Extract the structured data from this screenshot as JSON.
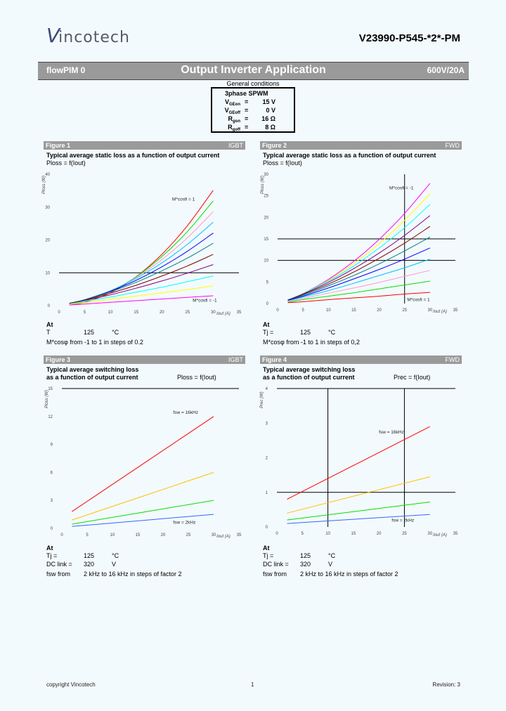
{
  "header": {
    "logo_text": "incotech",
    "logo_letter": "V",
    "part_number": "V23990-P545-*2*-PM"
  },
  "band": {
    "left": "flowPIM 0",
    "title": "Output Inverter Application",
    "right": "600V/20A"
  },
  "general_conditions": {
    "title": "General conditions",
    "mode": "3phase SPWM",
    "rows": [
      {
        "name": "V",
        "sub": "GEon",
        "eq": "=",
        "value": "15 V"
      },
      {
        "name": "V",
        "sub": "GEoff",
        "eq": "=",
        "value": "0 V"
      },
      {
        "name": "R",
        "sub": "gon",
        "eq": "=",
        "value": "16 Ω"
      },
      {
        "name": "R",
        "sub": "goff",
        "eq": "=",
        "value": "8 Ω"
      }
    ]
  },
  "figures": [
    {
      "label": "Figure 1",
      "tag": "IGBT",
      "title": "Typical average static loss as a function of output current",
      "title2": "",
      "formula": "Ploss = f(Iout)",
      "at": "At",
      "conditions": [
        {
          "k": "T",
          "v": "125",
          "u": "°C"
        }
      ],
      "note": "M*cosφ from -1 to 1 in steps of 0.2"
    },
    {
      "label": "Figure 2",
      "tag": "FWD",
      "title": "Typical average static loss as a function of output current",
      "title2": "",
      "formula": "Ploss = f(Iout)",
      "at": "At",
      "conditions": [
        {
          "k": "Tj =",
          "v": "125",
          "u": "°C"
        }
      ],
      "note": "M*cosφ from -1 to 1 in steps of 0,2"
    },
    {
      "label": "Figure 3",
      "tag": "IGBT",
      "title": "Typical average switching loss",
      "title2": "as a function of output current",
      "formula": "Ploss = f(Iout)",
      "at": "At",
      "conditions": [
        {
          "k": "Tj =",
          "v": "125",
          "u": "°C"
        },
        {
          "k": "DC link =",
          "v": "320",
          "u": "V"
        }
      ],
      "note_k": "fsw from",
      "note": "2 kHz to 16 kHz in steps of factor 2"
    },
    {
      "label": "Figure 4",
      "tag": "FWD",
      "title": "Typical average switching loss",
      "title2": "as a function of output current",
      "formula": "Prec = f(Iout)",
      "at": "At",
      "conditions": [
        {
          "k": "Tj =",
          "v": "125",
          "u": "°C"
        },
        {
          "k": "DC link =",
          "v": "320",
          "u": "V"
        }
      ],
      "note_k": "fsw from",
      "note": "2 kHz to 16 kHz in steps of factor 2"
    }
  ],
  "chart_data": [
    {
      "type": "line",
      "ylabel": "Ploss (W)",
      "xlabel": "Iout (A)",
      "xlim": [
        0,
        35
      ],
      "ylim": [
        0,
        40
      ],
      "xticks": [
        "0",
        "5",
        "10",
        "15",
        "20",
        "25",
        "30",
        "35"
      ],
      "yticks": [
        "0",
        "10",
        "20",
        "30",
        "40"
      ],
      "ref_h": [
        10
      ],
      "ref_v": [],
      "annotations": [
        {
          "text": "M*cosfi = 1",
          "x": 22,
          "y": 32
        },
        {
          "text": "M*cosfi = -1",
          "x": 26,
          "y": 1.2
        }
      ],
      "x": [
        2,
        5,
        10,
        15,
        20,
        25,
        30
      ],
      "series": [
        {
          "color": "#ff0000",
          "values": [
            0.2,
            1.0,
            3.9,
            8.8,
            15.6,
            24.4,
            35.1
          ]
        },
        {
          "color": "#00e000",
          "values": [
            0.3,
            1.3,
            4.3,
            8.8,
            14.9,
            22.6,
            31.9
          ]
        },
        {
          "color": "#ff99cc",
          "values": [
            0.5,
            1.6,
            4.4,
            8.6,
            14.0,
            20.7,
            28.6
          ]
        },
        {
          "color": "#00bfff",
          "values": [
            0.6,
            1.8,
            4.5,
            8.3,
            13.0,
            18.7,
            25.4
          ]
        },
        {
          "color": "#0000ff",
          "values": [
            0.6,
            1.8,
            4.4,
            7.7,
            11.8,
            16.6,
            22.1
          ]
        },
        {
          "color": "#008080",
          "values": [
            0.7,
            1.8,
            4.2,
            7.1,
            10.6,
            14.5,
            19.0
          ]
        },
        {
          "color": "#800000",
          "values": [
            0.7,
            1.7,
            3.8,
            6.2,
            9.0,
            12.1,
            15.6
          ]
        },
        {
          "color": "#800080",
          "values": [
            0.6,
            1.6,
            3.3,
            5.3,
            7.5,
            9.9,
            12.5
          ]
        },
        {
          "color": "#00ffff",
          "values": [
            0.5,
            1.3,
            2.6,
            4.1,
            5.6,
            7.3,
            9.0
          ]
        },
        {
          "color": "#ffff00",
          "values": [
            0.4,
            0.9,
            1.9,
            2.9,
            3.9,
            4.9,
            6.0
          ]
        },
        {
          "color": "#ff00ff",
          "values": [
            0.2,
            0.5,
            1.0,
            1.5,
            2.0,
            2.5,
            3.0
          ]
        }
      ]
    },
    {
      "type": "line",
      "ylabel": "Ploss (W)",
      "xlabel": "Iout (A)",
      "xlim": [
        0,
        35
      ],
      "ylim": [
        0,
        30
      ],
      "xticks": [
        "0",
        "5",
        "10",
        "15",
        "20",
        "25",
        "30",
        "35"
      ],
      "yticks": [
        "0",
        "5",
        "10",
        "15",
        "20",
        "25",
        "30"
      ],
      "ref_h": [
        10,
        15
      ],
      "ref_v": [
        25
      ],
      "annotations": [
        {
          "text": "M*cosfi = -1",
          "x": 22,
          "y": 26.5
        },
        {
          "text": "M*cosfi = 1",
          "x": 25.5,
          "y": 0.6
        }
      ],
      "x": [
        2,
        5,
        10,
        15,
        20,
        25,
        30
      ],
      "series": [
        {
          "color": "#ff00ff",
          "values": [
            0.8,
            2.3,
            5.6,
            9.8,
            14.9,
            20.9,
            27.9
          ]
        },
        {
          "color": "#ffff00",
          "values": [
            0.8,
            2.3,
            5.4,
            9.3,
            13.9,
            19.3,
            25.5
          ]
        },
        {
          "color": "#00ffff",
          "values": [
            0.8,
            2.3,
            5.2,
            8.7,
            12.9,
            17.6,
            23.0
          ]
        },
        {
          "color": "#800080",
          "values": [
            0.8,
            2.2,
            4.9,
            8.1,
            11.7,
            15.8,
            20.4
          ]
        },
        {
          "color": "#800000",
          "values": [
            0.8,
            2.1,
            4.5,
            7.3,
            10.5,
            14.0,
            17.9
          ]
        },
        {
          "color": "#008080",
          "values": [
            0.7,
            1.9,
            4.1,
            6.5,
            9.2,
            12.2,
            15.4
          ]
        },
        {
          "color": "#0000ff",
          "values": [
            0.7,
            1.7,
            3.6,
            5.7,
            7.9,
            10.3,
            12.9
          ]
        },
        {
          "color": "#00bfff",
          "values": [
            0.6,
            1.5,
            3.0,
            4.7,
            6.5,
            8.3,
            10.3
          ]
        },
        {
          "color": "#ff99cc",
          "values": [
            0.5,
            1.2,
            2.4,
            3.6,
            4.9,
            6.3,
            7.7
          ]
        },
        {
          "color": "#00e000",
          "values": [
            0.3,
            0.9,
            1.7,
            2.5,
            3.4,
            4.3,
            5.2
          ]
        },
        {
          "color": "#ff0000",
          "values": [
            0.2,
            0.4,
            0.9,
            1.3,
            1.7,
            2.2,
            2.6
          ]
        }
      ]
    },
    {
      "type": "line",
      "ylabel": "Ploss (W)",
      "xlabel": "Iout (A)",
      "xlim": [
        0,
        35
      ],
      "ylim": [
        0,
        15
      ],
      "xticks": [
        "0",
        "5",
        "10",
        "15",
        "20",
        "25",
        "30",
        "35"
      ],
      "yticks": [
        "0",
        "3",
        "6",
        "9",
        "12",
        "15"
      ],
      "ref_h": [
        15
      ],
      "ref_v": [],
      "annotations": [
        {
          "text": "fsw = 16kHz",
          "x": 22,
          "y": 12.3
        },
        {
          "text": "fsw = 2kHz",
          "x": 22,
          "y": 0.5
        }
      ],
      "x": [
        2,
        30
      ],
      "series": [
        {
          "color": "#ff0000",
          "values": [
            1.8,
            12.0
          ]
        },
        {
          "color": "#ffc000",
          "values": [
            0.9,
            6.0
          ]
        },
        {
          "color": "#00e000",
          "values": [
            0.45,
            3.0
          ]
        },
        {
          "color": "#3366ff",
          "values": [
            0.2,
            1.5
          ]
        }
      ]
    },
    {
      "type": "line",
      "ylabel": "Prec (W)",
      "xlabel": "Iout (A)",
      "xlim": [
        0,
        35
      ],
      "ylim": [
        0,
        4
      ],
      "xticks": [
        "0",
        "5",
        "10",
        "15",
        "20",
        "25",
        "30",
        "35"
      ],
      "yticks": [
        "0",
        "1",
        "2",
        "3",
        "4"
      ],
      "ref_h": [
        1,
        4
      ],
      "ref_v": [
        10,
        25
      ],
      "annotations": [
        {
          "text": "fsw = 16kHz",
          "x": 20,
          "y": 2.7
        },
        {
          "text": "fsw = 2kHz",
          "x": 22.5,
          "y": 0.15
        }
      ],
      "x": [
        2,
        30
      ],
      "series": [
        {
          "color": "#ff0000",
          "values": [
            0.8,
            2.9
          ]
        },
        {
          "color": "#ffc000",
          "values": [
            0.4,
            1.45
          ]
        },
        {
          "color": "#00e000",
          "values": [
            0.2,
            0.72
          ]
        },
        {
          "color": "#3366ff",
          "values": [
            0.1,
            0.36
          ]
        }
      ]
    }
  ],
  "footer": {
    "left": "copyright Vincotech",
    "center": "1",
    "right": "Revision: 3"
  }
}
